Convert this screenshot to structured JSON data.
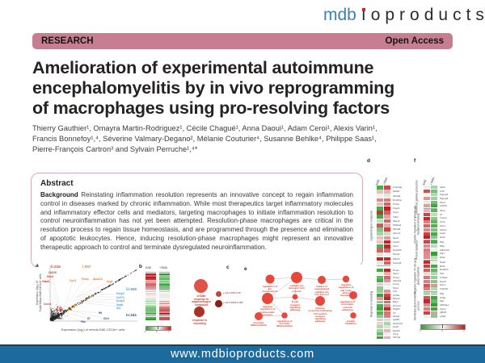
{
  "brand": {
    "logo_mdb": "mdb",
    "logo_i": "ı",
    "logo_rest": "oproducts",
    "logo_dot": ".",
    "website": "www.mdbioproducts.com"
  },
  "banner": {
    "left": "RESEARCH",
    "right": "Open Access"
  },
  "article": {
    "title_lines": [
      "Amelioration of experimental autoimmune",
      "encephalomyelitis by in vivo reprogramming",
      "of macrophages using pro-resolving factors"
    ],
    "author_lines": [
      "Thierry Gauthier¹, Omayra Martin-Rodriguez¹, Cécile Chagué¹, Anna Daoui¹, Adam Ceroi¹, Alexis Varin¹,",
      "Francis Bonnefoy¹,⁴, Séverine Valmary-Degano², Mélanie Couturier⁴, Susanne Behlke⁴, Philippe Saas¹,",
      "Pierre-François Cartron³ and Sylvain Perruche¹,⁴*"
    ],
    "abstract_heading": "Abstract",
    "background_label": "Background",
    "background_text": "Reinstating inflammation resolution represents an innovative concept to regain inflammation control in diseases marked by chronic inflammation. While most therapeutics target inflammatory molecules and inflammatory effector cells and mediators, targeting macrophages to initiate inflammation resolution to control neuroinflammation has not yet been attempted. Resolution-phase macrophages are critical in the resolution process to regain tissue homeostasis, and are programmed through the presence and elimination of apoptotic leukocytes. Hence, inducing resolution-phase macrophages might represent an innovative therapeutic approach to control and terminate dysregulated neuroinflammation."
  },
  "figures": {
    "a": {
      "label": "a",
      "xlabel": "Expression (log₂) of vehicle-EAE-CD11b+ cells",
      "ylabel_line1": "Expression (log₂) of",
      "ylabel_line2": "SuperMApo-EAE-CD11b+ cells",
      "quadrants": [
        {
          "text": "ii:216",
          "color": "#d43a26"
        },
        {
          "text": "i:357",
          "color": "#e87b2e"
        },
        {
          "text": "iii:568",
          "color": "#4d9bd5"
        },
        {
          "text": "iv:241",
          "color": "#1f4f7a"
        }
      ],
      "red_genes": [
        "Cd226",
        "Slfn4",
        "Gata4",
        "Cxcr4"
      ],
      "orange_genes": [
        "Ccrl2",
        "Foxry",
        "Abca13",
        "Arg1"
      ],
      "blue_genes": [
        "Foxp3",
        "Cd274",
        "Dusp3",
        "Smtb",
        "Il21"
      ],
      "navy_genes": [
        "Ifit",
        "Il7",
        "Cird",
        "Fas"
      ]
    },
    "b": {
      "label": "b",
      "columns": [
        "EAE",
        "+SMA"
      ],
      "scale_ticks": [
        "-1",
        "0",
        "1"
      ]
    },
    "c": {
      "label": "c",
      "bubbles": [
        "cellular response to organonitrogen compound",
        "response to wounding"
      ],
      "legend": [
        "p val 0.005-0.05",
        "p val 0.0005-0.005"
      ]
    },
    "d": {
      "label": "d",
      "columns": [
        "EAE",
        "+SMA"
      ],
      "sections": [
        {
          "category": "organonitrogen compound",
          "genes": [
            "Vmn3ag",
            "Mef2b",
            "Slc2a6",
            "Dmbt3a",
            "Pmoq",
            "Snpp1",
            "Foxry",
            "Trib3",
            "Mrep2",
            "Sh3ba4",
            "Slc2a9",
            "Oprm1",
            "Sstr4",
            "Cpt21",
            "Asmt",
            "Dmbt3b",
            "Mrc22",
            "Pik3r3",
            "Snmp2f"
          ]
        },
        {
          "category": "Response to wounding",
          "genes": [
            "Pmoe",
            "Vkorc",
            "Pmoq",
            "Abca13",
            "Foxrg",
            "Flora",
            "Ccrl",
            "Cphta",
            "Mrep2",
            "Banv",
            "Nmne2",
            "Pdgfrb",
            "F3",
            "Hbegf",
            "Igsf10",
            "Serpine2",
            "Cebrt",
            "Rgs20",
            "Creg",
            "Slc7a2"
          ]
        }
      ]
    },
    "e": {
      "label": "e",
      "nodes": [
        "regulation of ion homeostasis",
        "calcium ion transport into cytosol",
        "release of sequestered calcium ion into cytosol",
        "negative regulation of cell cycle phase transition",
        "negative regulation of homeostatic process",
        "B cell receptor signaling pathway",
        "immune response-activating cell surface receptor signaling pathway",
        "regulation of homotypic cell-cell adhesion",
        "myotube differentiation",
        "regulation of myotube differentiation",
        "protein lipidation"
      ]
    },
    "f": {
      "label": "f",
      "columns": [
        "EAE",
        "+SMA"
      ],
      "sections": [
        {
          "category": "Interferon gamma production",
          "genes": [
            "Il12a",
            "Cd5",
            "Pglyrp4",
            "Pglyrp2",
            "Klre1",
            "Cd276"
          ]
        },
        {
          "category": "Positive regulation of lymphocyte mediated immunity",
          "genes": [
            "Il21a",
            "Il7",
            "Trpm4",
            "Ccr9",
            "Klre1",
            "Klrb1c",
            "Lag3",
            "Hck1"
          ]
        },
        {
          "category": "Protein lipidation",
          "genes": [
            "Pigl",
            "Mttp",
            "Zdhhc23",
            "Pigz",
            "Hhat"
          ]
        },
        {
          "category": "Negative regulation of cell cycle phase transition",
          "genes": [
            "Nsd2",
            "Brd1",
            "Rad21b",
            "Sfi1",
            "Cldsp2",
            "Dgcr2",
            "Spn1",
            "Cdkn2b"
          ]
        },
        {
          "category": "Membrane lipid metabolic process",
          "genes": [
            "Pigl",
            "Chka",
            "Pigt",
            "Aldh3a1",
            "Acer1",
            "Igfbp5",
            "Lpfk4"
          ]
        }
      ]
    },
    "scale_ticks": [
      "-1",
      "0",
      "1"
    ]
  }
}
